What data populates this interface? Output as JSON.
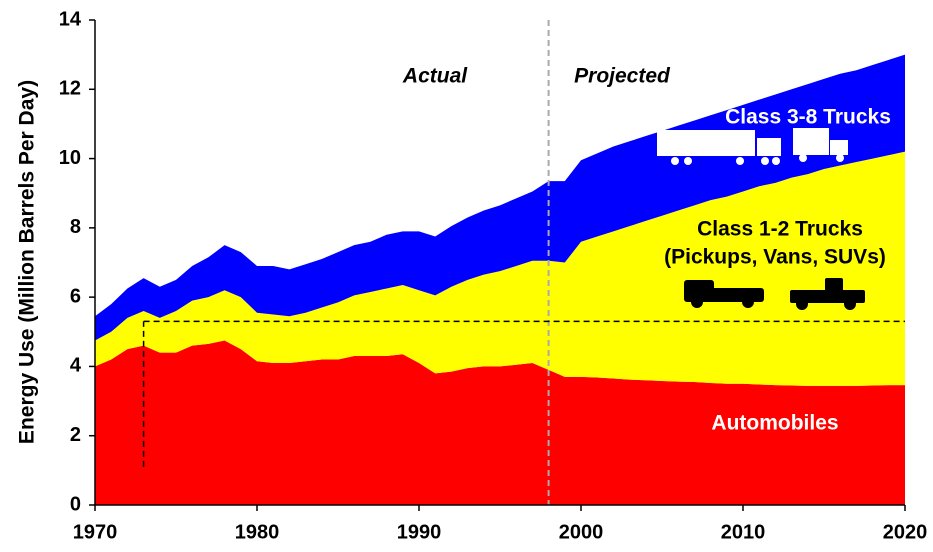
{
  "chart_data": {
    "type": "stacked_area",
    "y_label": "Energy Use (Million Barrels Per Day)",
    "x": [
      1970,
      1971,
      1972,
      1973,
      1974,
      1975,
      1976,
      1977,
      1978,
      1979,
      1980,
      1981,
      1982,
      1983,
      1984,
      1985,
      1986,
      1987,
      1988,
      1989,
      1990,
      1991,
      1992,
      1993,
      1994,
      1995,
      1996,
      1997,
      1998,
      1999,
      2000,
      2001,
      2002,
      2003,
      2004,
      2005,
      2006,
      2007,
      2008,
      2009,
      2010,
      2011,
      2012,
      2013,
      2014,
      2015,
      2016,
      2017,
      2018,
      2019,
      2020
    ],
    "series": [
      {
        "name": "Automobiles",
        "color": "#ff0000",
        "values": [
          4.0,
          4.2,
          4.5,
          4.6,
          4.4,
          4.4,
          4.6,
          4.65,
          4.75,
          4.5,
          4.15,
          4.1,
          4.1,
          4.15,
          4.2,
          4.2,
          4.3,
          4.3,
          4.3,
          4.35,
          4.1,
          3.8,
          3.85,
          3.95,
          4.0,
          4.0,
          4.05,
          4.1,
          3.9,
          3.7,
          3.7,
          3.68,
          3.65,
          3.62,
          3.6,
          3.58,
          3.56,
          3.55,
          3.52,
          3.5,
          3.5,
          3.48,
          3.46,
          3.45,
          3.44,
          3.44,
          3.44,
          3.44,
          3.45,
          3.46,
          3.46
        ]
      },
      {
        "name": "Class 1-2 Trucks",
        "color": "#ffff00",
        "values": [
          0.75,
          0.8,
          0.9,
          1.0,
          1.0,
          1.2,
          1.3,
          1.35,
          1.45,
          1.5,
          1.4,
          1.4,
          1.35,
          1.4,
          1.5,
          1.65,
          1.75,
          1.85,
          1.95,
          2.0,
          2.1,
          2.25,
          2.45,
          2.55,
          2.65,
          2.75,
          2.85,
          2.95,
          3.15,
          3.3,
          3.9,
          4.07,
          4.25,
          4.43,
          4.6,
          4.77,
          4.94,
          5.1,
          5.28,
          5.4,
          5.55,
          5.72,
          5.84,
          6.0,
          6.11,
          6.26,
          6.36,
          6.46,
          6.55,
          6.64,
          6.74
        ]
      },
      {
        "name": "Class 3-8 Trucks",
        "color": "#0000ff",
        "values": [
          0.7,
          0.8,
          0.85,
          0.95,
          0.9,
          0.9,
          1.0,
          1.15,
          1.3,
          1.3,
          1.35,
          1.4,
          1.35,
          1.4,
          1.4,
          1.45,
          1.45,
          1.45,
          1.55,
          1.55,
          1.7,
          1.7,
          1.75,
          1.8,
          1.85,
          1.9,
          1.95,
          2.0,
          2.3,
          2.35,
          2.35,
          2.4,
          2.45,
          2.45,
          2.45,
          2.45,
          2.45,
          2.45,
          2.45,
          2.5,
          2.5,
          2.5,
          2.55,
          2.55,
          2.6,
          2.6,
          2.65,
          2.65,
          2.7,
          2.75,
          2.8
        ]
      }
    ],
    "annotations": [
      "Actual",
      "Projected",
      "(Pickups, Vans, SUVs)"
    ],
    "projection_start": 1998,
    "reference_line": {
      "x": 1973,
      "y": 5.3,
      "y_from": 1.1
    },
    "xlim": [
      1970,
      2020
    ],
    "xticks": [
      1970,
      1980,
      1990,
      2000,
      2010,
      2020
    ],
    "ylim": [
      0,
      14
    ],
    "yticks": [
      0,
      2,
      4,
      6,
      8,
      10,
      12,
      14
    ],
    "grid": false
  }
}
